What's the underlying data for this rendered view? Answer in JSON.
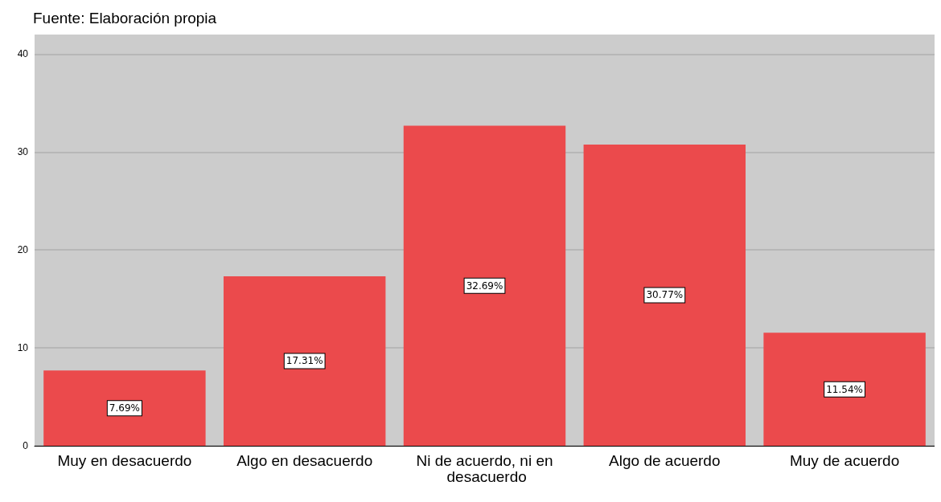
{
  "chart_data": {
    "type": "bar",
    "annotations": [
      "Fuente: Elaboración propia"
    ],
    "categories": [
      "Muy en desacuerdo",
      "Algo en desacuerdo",
      "Ni de acuerdo, ni en desacuerdo",
      "Algo de acuerdo",
      "Muy de acuerdo"
    ],
    "values": [
      7.69,
      17.31,
      32.69,
      30.77,
      11.54
    ],
    "value_labels": [
      "7.69%",
      "17.31%",
      "32.69%",
      "30.77%",
      "11.54%"
    ],
    "color": "#eb4a4c",
    "ylim": [
      0,
      42
    ],
    "yticks": [
      0,
      10,
      20,
      30,
      40
    ],
    "grid": "y"
  }
}
